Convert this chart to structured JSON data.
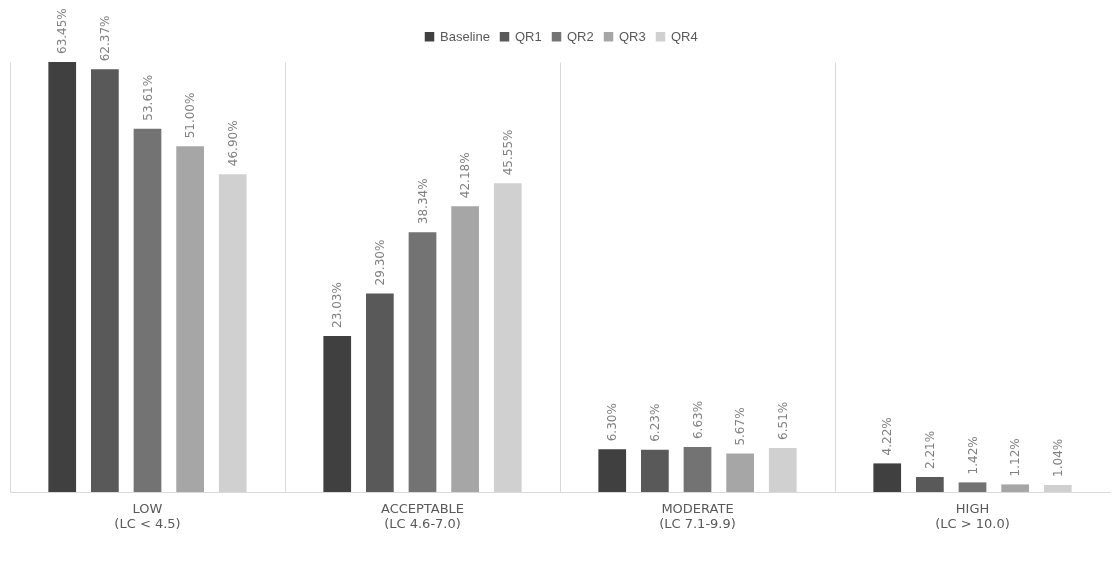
{
  "chart_data": {
    "type": "bar",
    "categories": [
      "LOW\n(LC < 4.5)",
      "ACCEPTABLE\n(LC 4.6-7.0)",
      "MODERATE\n(LC 7.1-9.9)",
      "HIGH\n(LC > 10.0)"
    ],
    "series": [
      {
        "name": "Baseline",
        "color": "#404040",
        "values": [
          63.45,
          23.03,
          6.3,
          4.22
        ],
        "value_labels": [
          "63.45%",
          "23.03%",
          "6.30%",
          "4.22%"
        ]
      },
      {
        "name": "QR1",
        "color": "#595959",
        "values": [
          62.37,
          29.3,
          6.23,
          2.21
        ],
        "value_labels": [
          "62.37%",
          "29.30%",
          "6.23%",
          "2.21%"
        ]
      },
      {
        "name": "QR2",
        "color": "#737373",
        "values": [
          53.61,
          38.34,
          6.63,
          1.42
        ],
        "value_labels": [
          "53.61%",
          "38.34%",
          "6.63%",
          "1.42%"
        ]
      },
      {
        "name": "QR3",
        "color": "#a6a6a6",
        "values": [
          51.0,
          42.18,
          5.67,
          1.12
        ],
        "value_labels": [
          "51.00%",
          "42.18%",
          "5.67%",
          "1.12%"
        ]
      },
      {
        "name": "QR4",
        "color": "#d0d0d0",
        "values": [
          46.9,
          45.55,
          6.51,
          1.04
        ],
        "value_labels": [
          "46.90%",
          "45.55%",
          "6.51%",
          "1.04%"
        ]
      }
    ],
    "legend": "top",
    "grid": "x"
  }
}
